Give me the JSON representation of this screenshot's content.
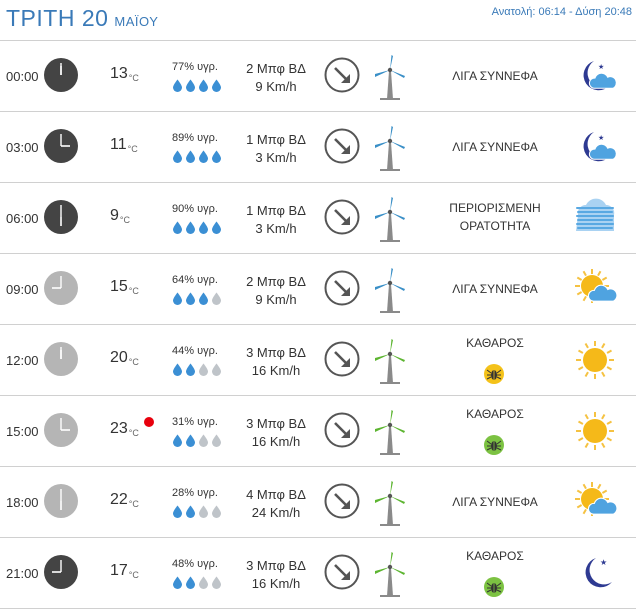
{
  "header": {
    "day": "ΤΡΙΤΗ 20",
    "month": "ΜΑΪΟΥ",
    "sun_times": "Ανατολή: 06:14 - Δύση 20:48"
  },
  "colors": {
    "accent": "#3a7ab8",
    "drop_full": "#3b8fd4",
    "drop_empty": "#bfc4c9",
    "clock_night": "#444444",
    "clock_day": "#b5b5b5",
    "record": "#e8000d"
  },
  "rows": [
    {
      "time": "00:00",
      "clock": "night",
      "temp": "13",
      "unit": "°C",
      "humidity": "77% υγρ.",
      "drops_full": 4,
      "wind": "2 Μπφ ΒΔ",
      "speed": "9 Km/h",
      "turbine": "night",
      "cond": "ΛΙΓΑ ΣΥΝΝΕΦΑ",
      "cond2": "",
      "badge": "",
      "icon": "moon-cloud-icon",
      "record": false
    },
    {
      "time": "03:00",
      "clock": "night",
      "temp": "11",
      "unit": "°C",
      "humidity": "89% υγρ.",
      "drops_full": 4,
      "wind": "1 Μπφ ΒΔ",
      "speed": "3 Km/h",
      "turbine": "night",
      "cond": "ΛΙΓΑ ΣΥΝΝΕΦΑ",
      "cond2": "",
      "badge": "",
      "icon": "moon-cloud-icon",
      "record": false
    },
    {
      "time": "06:00",
      "clock": "night",
      "temp": "9",
      "unit": "°C",
      "humidity": "90% υγρ.",
      "drops_full": 4,
      "wind": "1 Μπφ ΒΔ",
      "speed": "3 Km/h",
      "turbine": "night",
      "cond": "ΠΕΡΙΟΡΙΣΜΕΝΗ",
      "cond2": "ΟΡΑΤΟΤΗΤΑ",
      "badge": "",
      "icon": "fog-icon",
      "record": false
    },
    {
      "time": "09:00",
      "clock": "day",
      "temp": "15",
      "unit": "°C",
      "humidity": "64% υγρ.",
      "drops_full": 3,
      "wind": "2 Μπφ ΒΔ",
      "speed": "9 Km/h",
      "turbine": "night",
      "cond": "ΛΙΓΑ ΣΥΝΝΕΦΑ",
      "cond2": "",
      "badge": "",
      "icon": "sun-cloud-icon",
      "record": false
    },
    {
      "time": "12:00",
      "clock": "day",
      "temp": "20",
      "unit": "°C",
      "humidity": "44% υγρ.",
      "drops_full": 2,
      "wind": "3 Μπφ ΒΔ",
      "speed": "16 Km/h",
      "turbine": "day",
      "cond": "ΚΑΘΑΡΟΣ",
      "cond2": "",
      "badge": "yellow",
      "icon": "sun-icon",
      "record": false
    },
    {
      "time": "15:00",
      "clock": "day",
      "temp": "23",
      "unit": "°C",
      "humidity": "31% υγρ.",
      "drops_full": 2,
      "wind": "3 Μπφ ΒΔ",
      "speed": "16 Km/h",
      "turbine": "day",
      "cond": "ΚΑΘΑΡΟΣ",
      "cond2": "",
      "badge": "green",
      "icon": "sun-icon",
      "record": true
    },
    {
      "time": "18:00",
      "clock": "day",
      "temp": "22",
      "unit": "°C",
      "humidity": "28% υγρ.",
      "drops_full": 2,
      "wind": "4 Μπφ ΒΔ",
      "speed": "24 Km/h",
      "turbine": "day",
      "cond": "ΛΙΓΑ ΣΥΝΝΕΦΑ",
      "cond2": "",
      "badge": "",
      "icon": "sun-cloud-icon",
      "record": false
    },
    {
      "time": "21:00",
      "clock": "night",
      "temp": "17",
      "unit": "°C",
      "humidity": "48% υγρ.",
      "drops_full": 2,
      "wind": "3 Μπφ ΒΔ",
      "speed": "16 Km/h",
      "turbine": "day",
      "cond": "ΚΑΘΑΡΟΣ",
      "cond2": "",
      "badge": "green",
      "icon": "moon-icon",
      "record": false
    }
  ]
}
